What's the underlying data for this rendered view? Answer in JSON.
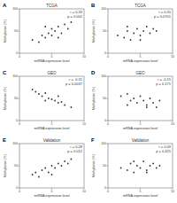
{
  "chart_data": [
    {
      "type": "scatter",
      "panel": "A",
      "title": "TCGA",
      "annotations": [
        "r = 0.33",
        "p = 0.002"
      ],
      "x_label": "miRNA expression level",
      "y_label": "Methylation (%)",
      "x": [
        2,
        3,
        3.5,
        4,
        4.5,
        5,
        5,
        5.5,
        6,
        6.5,
        7,
        7.5,
        8,
        4,
        6
      ],
      "values": [
        30,
        25,
        40,
        35,
        45,
        40,
        55,
        50,
        60,
        45,
        65,
        55,
        70,
        60,
        35
      ],
      "xlim": [
        0,
        10
      ],
      "ylim": [
        0,
        100
      ],
      "xticks": [
        0,
        5,
        10
      ],
      "yticks": [
        0,
        50,
        100
      ],
      "color": "#333333"
    },
    {
      "type": "scatter",
      "panel": "B",
      "title": "TCGA",
      "annotations": [
        "r = 0.20",
        "p = 0.0701"
      ],
      "x_label": "mRNA expression level",
      "y_label": "Methylation (%)",
      "x": [
        1.5,
        2.5,
        3,
        3.5,
        4,
        4.5,
        5,
        5.5,
        6,
        6.5,
        7,
        7.5,
        3,
        5
      ],
      "values": [
        40,
        35,
        50,
        30,
        45,
        55,
        40,
        50,
        60,
        45,
        55,
        50,
        60,
        30
      ],
      "xlim": [
        0,
        10
      ],
      "ylim": [
        0,
        100
      ],
      "xticks": [
        0,
        5,
        10
      ],
      "yticks": [
        0,
        50,
        100
      ],
      "color": "#333333"
    },
    {
      "type": "scatter",
      "panel": "C",
      "title": "GEO",
      "annotations": [
        "r = -0.31",
        "p = 0.0037"
      ],
      "x_label": "miRNA expression level",
      "y_label": "Methylation (%)",
      "x": [
        2,
        2.5,
        3,
        3.5,
        4,
        4.5,
        5,
        5.5,
        6,
        6.5,
        7,
        8,
        4,
        6
      ],
      "values": [
        70,
        65,
        60,
        55,
        62,
        50,
        48,
        45,
        40,
        42,
        35,
        30,
        45,
        55
      ],
      "xlim": [
        0,
        10
      ],
      "ylim": [
        0,
        100
      ],
      "xticks": [
        0,
        5,
        10
      ],
      "yticks": [
        0,
        50,
        100
      ],
      "color": "#333333"
    },
    {
      "type": "scatter",
      "panel": "D",
      "title": "GEO",
      "annotations": [
        "r = -0.15",
        "p = 0.171"
      ],
      "x_label": "mRNA expression level",
      "y_label": "Methylation (%)",
      "x": [
        2,
        3,
        3.5,
        4,
        4.5,
        5,
        5.5,
        6,
        6.5,
        7,
        7.5,
        8,
        3,
        6
      ],
      "values": [
        55,
        60,
        45,
        50,
        40,
        55,
        45,
        35,
        50,
        40,
        30,
        45,
        35,
        30
      ],
      "xlim": [
        0,
        10
      ],
      "ylim": [
        0,
        100
      ],
      "xticks": [
        0,
        5,
        10
      ],
      "yticks": [
        0,
        50,
        100
      ],
      "color": "#333333"
    },
    {
      "type": "scatter",
      "panel": "E",
      "title": "Validation",
      "annotations": [
        "r = 0.28",
        "p = 0.012"
      ],
      "x_label": "miRNA expression level",
      "y_label": "Methylation (%)",
      "x": [
        2,
        2.5,
        3,
        3.5,
        4,
        4.5,
        5,
        5.5,
        6,
        6.5,
        7,
        7.5,
        8,
        5
      ],
      "values": [
        30,
        35,
        25,
        40,
        45,
        35,
        50,
        45,
        55,
        50,
        60,
        55,
        65,
        30
      ],
      "xlim": [
        0,
        10
      ],
      "ylim": [
        0,
        100
      ],
      "xticks": [
        0,
        5,
        10
      ],
      "yticks": [
        0,
        50,
        100
      ],
      "color": "#333333"
    },
    {
      "type": "scatter",
      "panel": "F",
      "title": "Validation",
      "annotations": [
        "r = 0.09",
        "p = 0.425"
      ],
      "x_label": "mRNA expression level",
      "y_label": "Methylation (%)",
      "x": [
        2,
        3,
        3.5,
        4,
        4.5,
        5,
        5.5,
        6,
        6.5,
        7,
        7.5,
        8,
        4,
        6
      ],
      "values": [
        45,
        40,
        55,
        35,
        50,
        45,
        60,
        40,
        50,
        55,
        45,
        50,
        60,
        35
      ],
      "xlim": [
        0,
        10
      ],
      "ylim": [
        0,
        100
      ],
      "xticks": [
        0,
        5,
        10
      ],
      "yticks": [
        0,
        50,
        100
      ],
      "color": "#333333"
    }
  ]
}
